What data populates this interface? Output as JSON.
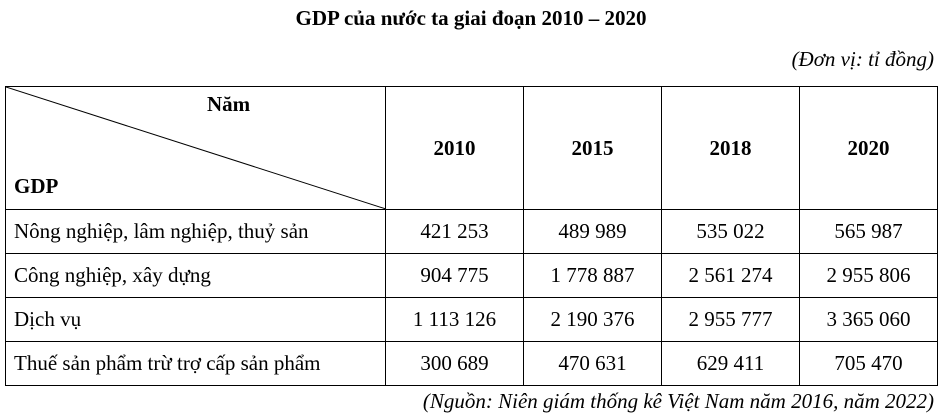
{
  "title": "GDP của nước ta giai đoạn 2010 – 2020",
  "unit": "(Đơn vị: tỉ đồng)",
  "table": {
    "corner_top": "Năm",
    "corner_bottom": "GDP",
    "years": [
      "2010",
      "2015",
      "2018",
      "2020"
    ],
    "rows": [
      {
        "label": "Nông nghiệp, lâm nghiệp, thuỷ sản",
        "values": [
          "421 253",
          "489 989",
          "535 022",
          "565 987"
        ]
      },
      {
        "label": "Công nghiệp, xây dựng",
        "values": [
          "904 775",
          "1 778 887",
          "2 561 274",
          "2 955 806"
        ]
      },
      {
        "label": "Dịch vụ",
        "values": [
          "1 113 126",
          "2 190 376",
          "2 955 777",
          "3 365 060"
        ]
      },
      {
        "label": "Thuế sản phẩm trừ trợ cấp sản phẩm",
        "values": [
          "300 689",
          "470 631",
          "629 411",
          "705 470"
        ]
      }
    ]
  },
  "source": "(Nguồn: Niên giám thống kê Việt Nam năm 2016, năm 2022)"
}
